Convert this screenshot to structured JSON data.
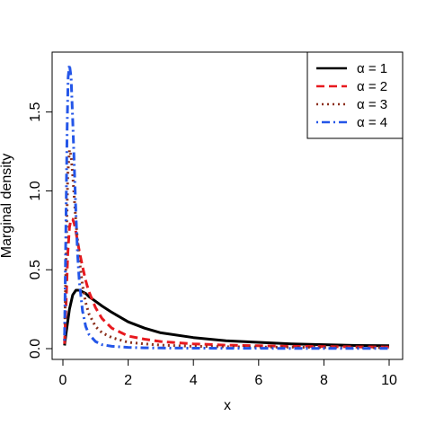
{
  "chart_data": {
    "type": "line",
    "xlabel": "x",
    "ylabel": "Marginal density",
    "xlim": [
      0,
      10
    ],
    "ylim": [
      0,
      1.8
    ],
    "x_ticks": [
      "0",
      "2",
      "4",
      "6",
      "8",
      "10"
    ],
    "y_ticks": [
      "0.0",
      "0.5",
      "1.0",
      "1.5"
    ],
    "legend_position": "top-right",
    "series": [
      {
        "name": "α = 1",
        "color": "#000000",
        "dash": "solid",
        "x": [
          0.05,
          0.1,
          0.2,
          0.3,
          0.4,
          0.5,
          0.6,
          0.7,
          0.8,
          1.0,
          1.2,
          1.5,
          2.0,
          2.5,
          3.0,
          4.0,
          5.0,
          6.0,
          7.0,
          8.0,
          9.0,
          10.0
        ],
        "y": [
          0.02,
          0.1,
          0.25,
          0.34,
          0.37,
          0.37,
          0.36,
          0.35,
          0.33,
          0.3,
          0.27,
          0.23,
          0.17,
          0.13,
          0.1,
          0.07,
          0.05,
          0.04,
          0.03,
          0.025,
          0.02,
          0.018
        ]
      },
      {
        "name": "α = 2",
        "color": "#e8191f",
        "dash": "dashed",
        "x": [
          0.05,
          0.1,
          0.15,
          0.2,
          0.25,
          0.3,
          0.35,
          0.4,
          0.45,
          0.5,
          0.6,
          0.7,
          0.8,
          1.0,
          1.2,
          1.5,
          2.0,
          2.5,
          3.0,
          4.0,
          5.0,
          6.0,
          7.0,
          8.0,
          9.0,
          10.0
        ],
        "y": [
          0.03,
          0.3,
          0.6,
          0.77,
          0.82,
          0.82,
          0.79,
          0.74,
          0.68,
          0.62,
          0.52,
          0.43,
          0.36,
          0.26,
          0.19,
          0.13,
          0.08,
          0.06,
          0.045,
          0.03,
          0.022,
          0.018,
          0.015,
          0.013,
          0.011,
          0.01
        ]
      },
      {
        "name": "α = 3",
        "color": "#8b2e1a",
        "dash": "dotted",
        "x": [
          0.05,
          0.1,
          0.15,
          0.2,
          0.25,
          0.3,
          0.35,
          0.4,
          0.5,
          0.6,
          0.7,
          0.8,
          1.0,
          1.2,
          1.5,
          2.0,
          2.5,
          3.0,
          4.0,
          5.0,
          6.0,
          7.0,
          8.0,
          9.0,
          10.0
        ],
        "y": [
          0.05,
          0.6,
          1.1,
          1.26,
          1.22,
          1.1,
          0.95,
          0.8,
          0.57,
          0.4,
          0.29,
          0.22,
          0.14,
          0.1,
          0.07,
          0.04,
          0.03,
          0.022,
          0.015,
          0.012,
          0.01,
          0.009,
          0.008,
          0.007,
          0.006
        ]
      },
      {
        "name": "α = 4",
        "color": "#2456e8",
        "dash": "dotdash",
        "x": [
          0.05,
          0.1,
          0.13,
          0.16,
          0.2,
          0.25,
          0.3,
          0.35,
          0.4,
          0.45,
          0.5,
          0.6,
          0.7,
          0.8,
          1.0,
          1.2,
          1.5,
          2.0,
          2.5,
          3.0,
          4.0,
          5.0,
          6.0,
          7.0,
          8.0,
          9.0,
          10.0
        ],
        "y": [
          0.05,
          0.9,
          1.4,
          1.72,
          1.8,
          1.72,
          1.45,
          1.15,
          0.85,
          0.6,
          0.43,
          0.24,
          0.14,
          0.09,
          0.045,
          0.025,
          0.015,
          0.008,
          0.005,
          0.004,
          0.003,
          0.002,
          0.002,
          0.001,
          0.001,
          0.001,
          0.001
        ]
      }
    ]
  }
}
